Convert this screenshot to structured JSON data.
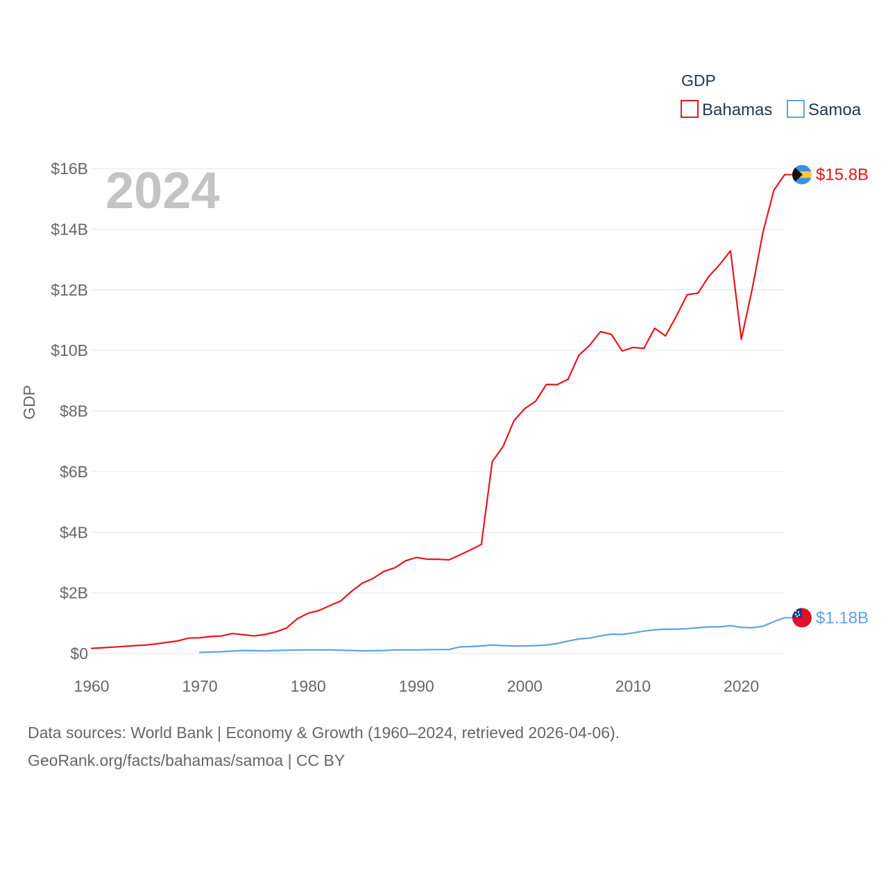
{
  "chart_data": {
    "type": "line",
    "title": "",
    "year_label": "2024",
    "xlabel": "",
    "ylabel": "GDP",
    "xlim": [
      1960,
      2024
    ],
    "ylim": [
      0,
      16
    ],
    "x_ticks": [
      1960,
      1970,
      1980,
      1990,
      2000,
      2010,
      2020
    ],
    "x_tick_labels": [
      "1960",
      "1970",
      "1980",
      "1990",
      "2000",
      "2010",
      "2020"
    ],
    "y_ticks": [
      0,
      2,
      4,
      6,
      8,
      10,
      12,
      14,
      16
    ],
    "y_tick_labels": [
      "$0",
      "$2B",
      "$4B",
      "$6B",
      "$8B",
      "$10B",
      "$12B",
      "$14B",
      "$16B"
    ],
    "legend": {
      "title": "GDP",
      "placement": "top-right"
    },
    "units": "billions USD",
    "series": [
      {
        "name": "Bahamas",
        "color": "#e8141c",
        "flag": "bahamas-flag-icon",
        "end_label": "$15.8B",
        "x": [
          1960,
          1962,
          1964,
          1965,
          1966,
          1968,
          1969,
          1970,
          1971,
          1972,
          1973,
          1974,
          1975,
          1976,
          1977,
          1978,
          1979,
          1980,
          1981,
          1982,
          1983,
          1984,
          1985,
          1986,
          1987,
          1988,
          1989,
          1990,
          1991,
          1992,
          1993,
          1994,
          1995,
          1996,
          1997,
          1998,
          1999,
          2000,
          2001,
          2002,
          2003,
          2004,
          2005,
          2006,
          2007,
          2008,
          2009,
          2010,
          2011,
          2012,
          2013,
          2014,
          2015,
          2016,
          2017,
          2018,
          2019,
          2020,
          2021,
          2022,
          2023,
          2024
        ],
        "values": [
          0.17,
          0.21,
          0.26,
          0.28,
          0.32,
          0.42,
          0.51,
          0.52,
          0.56,
          0.58,
          0.66,
          0.62,
          0.58,
          0.63,
          0.71,
          0.84,
          1.15,
          1.33,
          1.42,
          1.58,
          1.73,
          2.05,
          2.32,
          2.48,
          2.71,
          2.83,
          3.06,
          3.17,
          3.11,
          3.11,
          3.09,
          3.25,
          3.42,
          3.6,
          6.33,
          6.83,
          7.68,
          8.08,
          8.32,
          8.88,
          8.87,
          9.05,
          9.84,
          10.17,
          10.62,
          10.53,
          9.98,
          10.1,
          10.07,
          10.73,
          10.48,
          11.13,
          11.84,
          11.89,
          12.44,
          12.83,
          13.29,
          10.37,
          12.02,
          13.9,
          15.28,
          15.8
        ]
      },
      {
        "name": "Samoa",
        "color": "#5da2e6",
        "flag": "samoa-flag-icon",
        "end_label": "$1.18B",
        "x": [
          1970,
          1972,
          1974,
          1976,
          1978,
          1980,
          1982,
          1985,
          1987,
          1988,
          1990,
          1992,
          1993,
          1994,
          1995,
          1996,
          1997,
          1998,
          1999,
          2000,
          2001,
          2002,
          2003,
          2004,
          2005,
          2006,
          2007,
          2008,
          2009,
          2010,
          2011,
          2012,
          2013,
          2014,
          2015,
          2016,
          2017,
          2018,
          2019,
          2020,
          2021,
          2022,
          2023,
          2024
        ],
        "values": [
          0.04,
          0.06,
          0.1,
          0.09,
          0.11,
          0.12,
          0.12,
          0.09,
          0.1,
          0.12,
          0.12,
          0.13,
          0.13,
          0.22,
          0.23,
          0.25,
          0.28,
          0.26,
          0.25,
          0.25,
          0.26,
          0.28,
          0.33,
          0.41,
          0.48,
          0.51,
          0.58,
          0.64,
          0.63,
          0.68,
          0.74,
          0.78,
          0.8,
          0.8,
          0.82,
          0.85,
          0.88,
          0.88,
          0.92,
          0.86,
          0.85,
          0.9,
          1.05,
          1.18
        ]
      }
    ]
  },
  "footer": {
    "line1": "Data sources: World Bank | Economy & Growth (1960–2024, retrieved 2026-04-06).",
    "line2": "GeoRank.org/facts/bahamas/samoa | CC BY"
  }
}
